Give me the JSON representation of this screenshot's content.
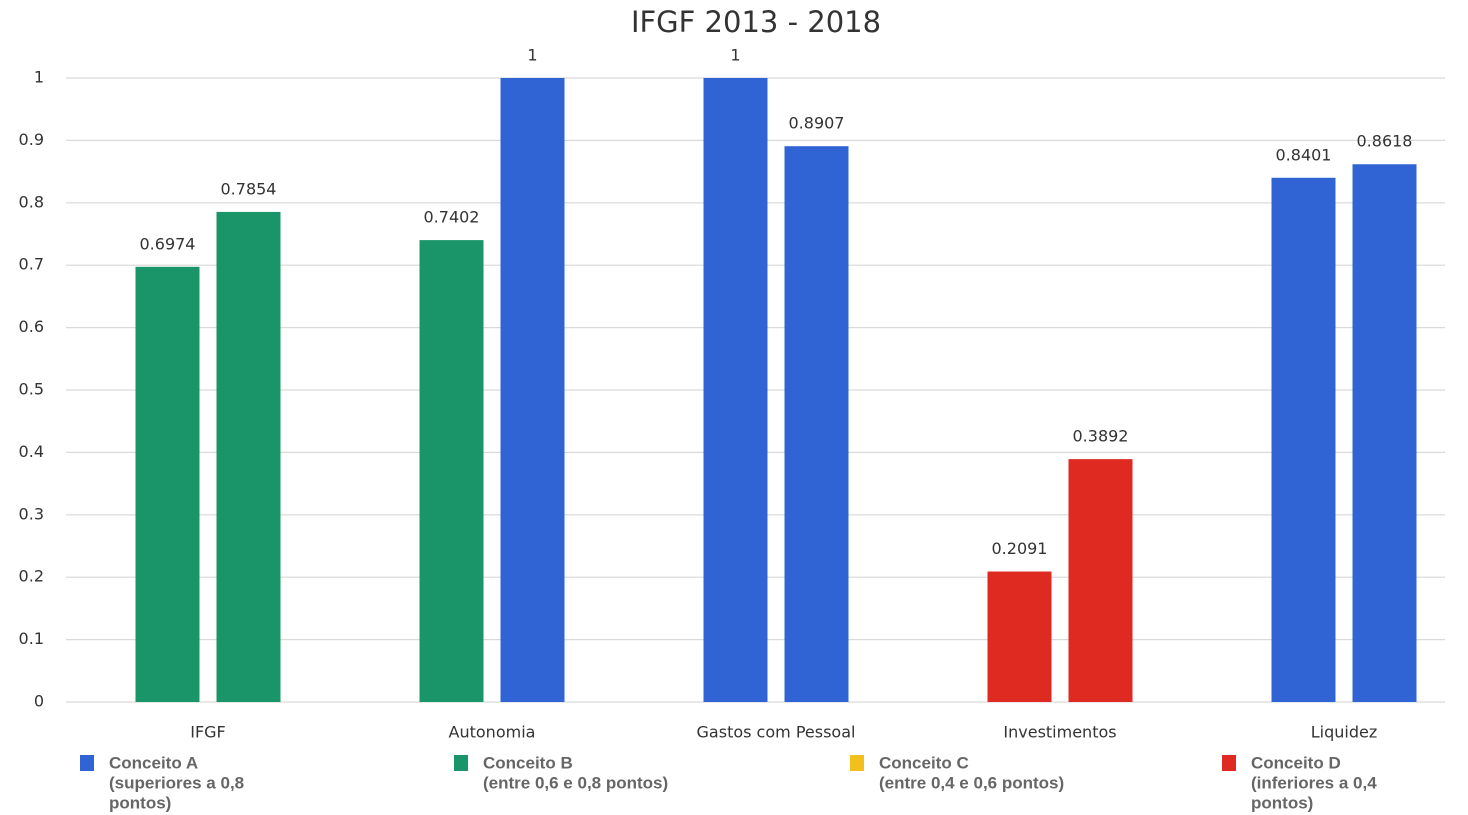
{
  "chart_data": {
    "type": "bar",
    "title": "IFGF 2013 - 2018",
    "categories": [
      "IFGF",
      "Autonomia",
      "Gastos com Pessoal",
      "Investimentos",
      "Liquidez"
    ],
    "series": [
      {
        "values": [
          0.6974,
          0.7402,
          1,
          0.2091,
          0.8401
        ],
        "colors": [
          "#1a9469",
          "#1a9469",
          "#3064d4",
          "#de2a20",
          "#3064d4"
        ]
      },
      {
        "values": [
          0.7854,
          1,
          0.8907,
          0.3892,
          0.8618
        ],
        "colors": [
          "#1a9469",
          "#3064d4",
          "#3064d4",
          "#de2a20",
          "#3064d4"
        ]
      }
    ],
    "ylim": [
      0,
      1
    ],
    "yticks": [
      0,
      0.1,
      0.2,
      0.3,
      0.4,
      0.5,
      0.6,
      0.7,
      0.8,
      0.9,
      1
    ],
    "grid": true,
    "legend": [
      {
        "lines": [
          "Conceito A",
          "(superiores a 0,8",
          "pontos)"
        ],
        "color": "#3064d4"
      },
      {
        "lines": [
          "Conceito B",
          "(entre 0,6 e 0,8 pontos)"
        ],
        "color": "#1a9469"
      },
      {
        "lines": [
          "Conceito C",
          "(entre 0,4 e 0,6 pontos)"
        ],
        "color": "#f2c01c"
      },
      {
        "lines": [
          "Conceito D",
          "(inferiores a 0,4",
          "pontos)"
        ],
        "color": "#de2a20"
      }
    ]
  }
}
